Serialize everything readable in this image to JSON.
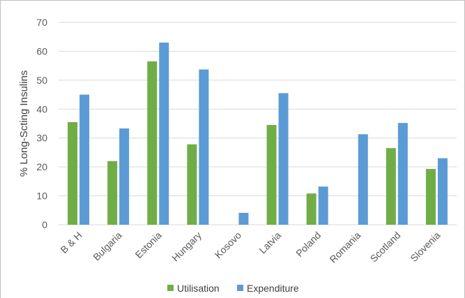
{
  "chart_data": {
    "type": "bar",
    "title": "",
    "xlabel": "",
    "ylabel": "% Long-Scting Insulins",
    "ylim": [
      0,
      70
    ],
    "yticks": [
      0,
      10,
      20,
      30,
      40,
      50,
      60,
      70
    ],
    "grid": true,
    "legend_position": "bottom",
    "categories": [
      "B & H",
      "Bulgaria",
      "Estonia",
      "Hungary",
      "Kosovo",
      "Latvia",
      "Poland",
      "Romania",
      "Scotland",
      "Slovenia"
    ],
    "series": [
      {
        "name": "Utilisation",
        "color": "#70ad47",
        "values": [
          35.5,
          22,
          56.5,
          27.8,
          null,
          34.5,
          10.8,
          null,
          26.5,
          19.3
        ]
      },
      {
        "name": "Expenditure",
        "color": "#5b9bd5",
        "values": [
          45,
          33.3,
          63,
          53.7,
          4.1,
          45.5,
          13.2,
          31.3,
          35.2,
          23
        ]
      }
    ]
  }
}
